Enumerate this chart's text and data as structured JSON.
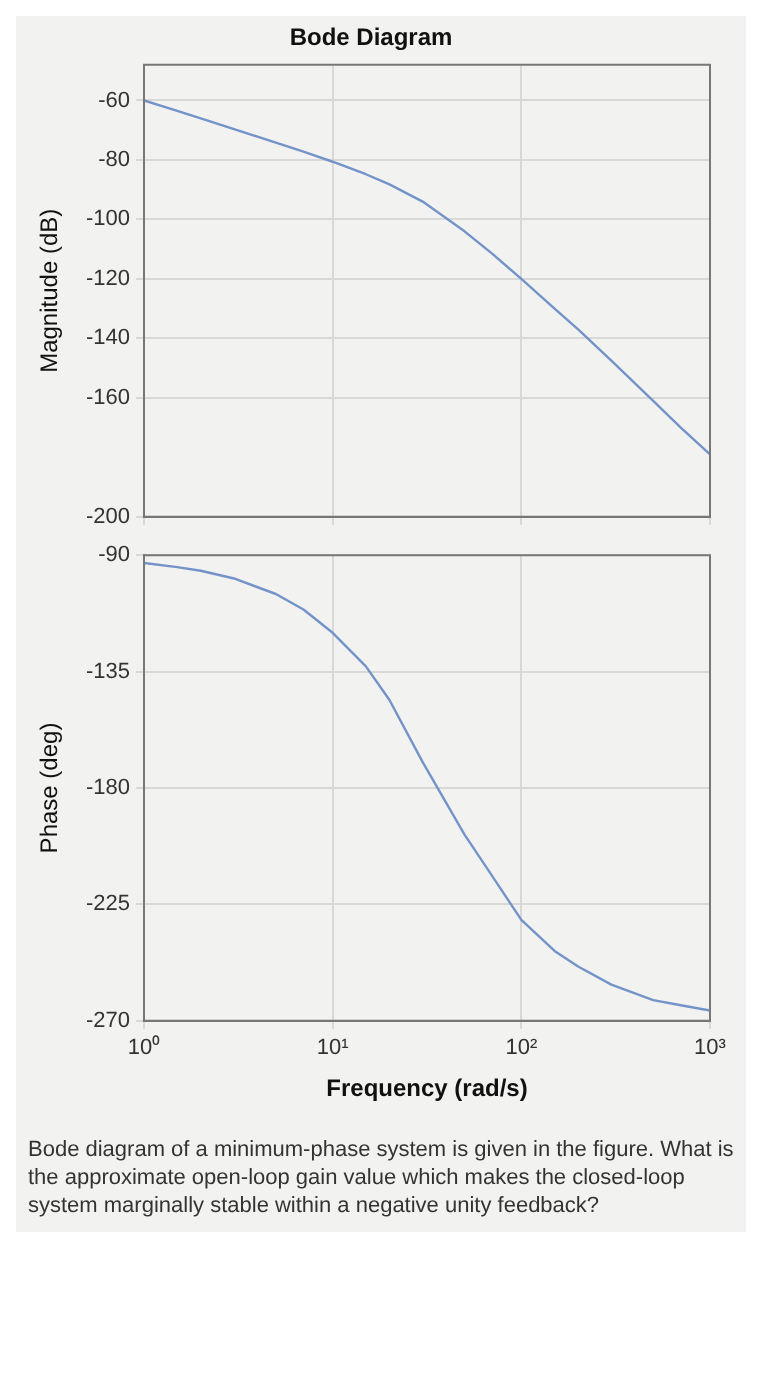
{
  "chart_data": [
    {
      "type": "line",
      "title": "Bode Diagram",
      "ylabel": "Magnitude (dB)",
      "x": [
        1,
        1.5,
        2,
        3,
        5,
        7,
        10,
        15,
        20,
        30,
        50,
        70,
        100,
        150,
        200,
        300,
        500,
        700,
        1000
      ],
      "series": [
        {
          "color": "#7393c9",
          "values": [
            -60,
            -63.5,
            -66,
            -69.6,
            -74.2,
            -77.2,
            -80.6,
            -84.8,
            -88.2,
            -94,
            -104,
            -111.5,
            -120,
            -130,
            -137,
            -147.5,
            -161,
            -170,
            -179
          ]
        }
      ],
      "log": "x",
      "xlim": [
        1,
        1000
      ],
      "xticks": [
        {
          "value": 1,
          "label": null
        },
        {
          "value": 10,
          "label": null
        },
        {
          "value": 100,
          "label": null
        },
        {
          "value": 1000,
          "label": null
        }
      ],
      "ylim": [
        -200,
        -48
      ],
      "yticks": [
        -200,
        -160,
        -140,
        -120,
        -100,
        -80,
        -60
      ],
      "grid": true,
      "tick_labels": "y",
      "marker": "none"
    },
    {
      "type": "line",
      "ylabel": "Phase (deg)",
      "xlabel": "Frequency (rad/s)",
      "annotations": [
        "Bode diagram of a minimum-phase system is given in the figure. What is the approximate open-loop gain value which makes the closed-loop system marginally stable within a negative unity feedback?"
      ],
      "x": [
        1,
        1.5,
        2,
        3,
        5,
        7,
        10,
        15,
        20,
        30,
        50,
        70,
        100,
        150,
        200,
        300,
        500,
        700,
        1000
      ],
      "series": [
        {
          "color": "#7393c9",
          "values": [
            -93,
            -94.6,
            -96,
            -99,
            -105,
            -111,
            -120,
            -133,
            -146,
            -170,
            -198,
            -214,
            -231,
            -243,
            -249,
            -256,
            -262,
            -264,
            -266
          ]
        }
      ],
      "log": "x",
      "xlim": [
        1,
        1000
      ],
      "xticks": [
        {
          "value": 1,
          "label": "10⁰"
        },
        {
          "value": 10,
          "label": "10¹"
        },
        {
          "value": 100,
          "label": "10²"
        },
        {
          "value": 1000,
          "label": "10³"
        }
      ],
      "ylim": [
        -270,
        -90
      ],
      "yticks": [
        -270,
        -225,
        -180,
        -135,
        -90
      ],
      "grid": true,
      "marker": "none"
    }
  ]
}
